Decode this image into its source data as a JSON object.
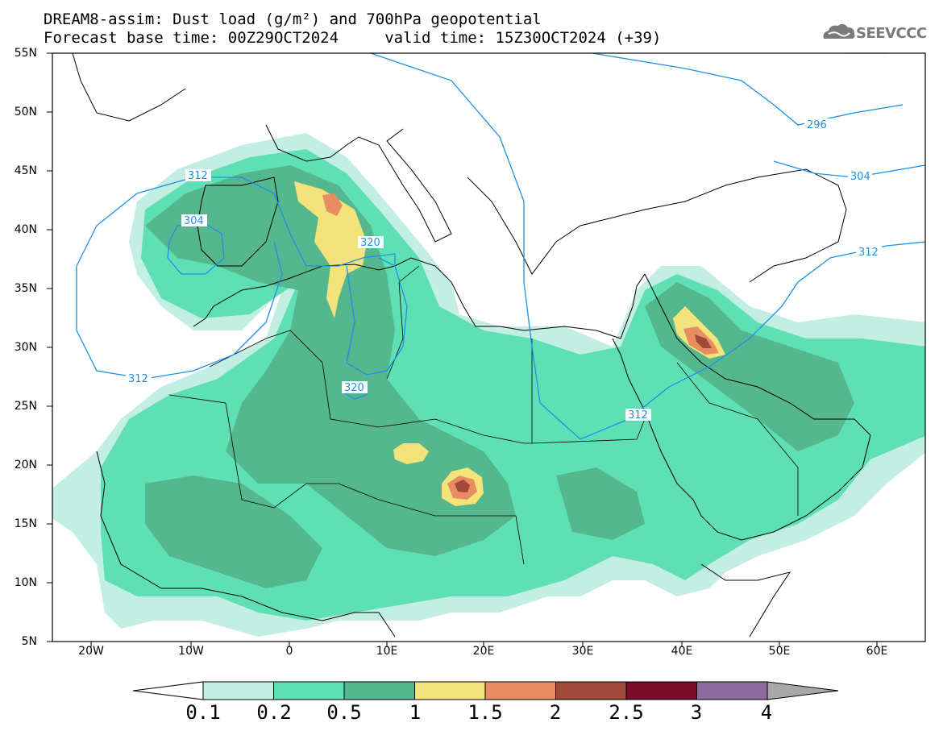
{
  "title_line1": "DREAM8-assim: Dust load (g/m²) and 700hPa geopotential",
  "title_line2": "Forecast base time: 00Z29OCT2024     valid time: 15Z30OCT2024 (+39)",
  "logo": {
    "icon": "cloud-icon",
    "text": "SEEVCCC"
  },
  "map_extent": {
    "lon_min": -25,
    "lon_max": 65,
    "lat_min": 5,
    "lat_max": 55
  },
  "lat_labels": [
    "55N",
    "50N",
    "45N",
    "40N",
    "35N",
    "30N",
    "25N",
    "20N",
    "15N",
    "10N",
    "5N"
  ],
  "lon_labels": [
    "20W",
    "10W",
    "0",
    "10E",
    "20E",
    "30E",
    "40E",
    "50E",
    "60E"
  ],
  "contour_labels": [
    "312",
    "304",
    "320",
    "320",
    "296",
    "304",
    "312",
    "312",
    "312"
  ],
  "colorbar": {
    "labels": [
      "0.1",
      "0.2",
      "0.5",
      "1",
      "1.5",
      "2",
      "2.5",
      "3",
      "4"
    ],
    "colors": [
      "#c2eee3",
      "#5fe0b4",
      "#55b78e",
      "#f2e47a",
      "#e88c62",
      "#a14a3a",
      "#7a0b2b",
      "#8e6a9e",
      "#a8a8a8"
    ]
  },
  "colors": {
    "contour": "#1e90e6",
    "coast": "#000000"
  }
}
